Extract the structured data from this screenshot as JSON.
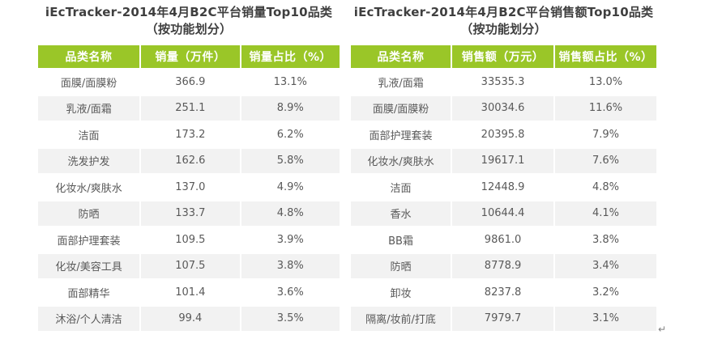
{
  "colors": {
    "accent_green": "#9ac628",
    "header_text": "#ffffff",
    "row_alt_bg": "#f2f2f2",
    "cell_text": "#595959",
    "title_text": "#3f3f3f"
  },
  "word_return_mark": "↵",
  "chart_data": [
    {
      "type": "table",
      "title_line1": "iEcTracker-2014年4月B2C平台销量Top10品类",
      "title_line2": "（按功能划分）",
      "headers": [
        "品类名称",
        "销量（万件）",
        "销量占比（%）"
      ],
      "rows": [
        [
          "面膜/面膜粉",
          "366.9",
          "13.1%"
        ],
        [
          "乳液/面霜",
          "251.1",
          "8.9%"
        ],
        [
          "洁面",
          "173.2",
          "6.2%"
        ],
        [
          "洗发护发",
          "162.6",
          "5.8%"
        ],
        [
          "化妆水/爽肤水",
          "137.0",
          "4.9%"
        ],
        [
          "防晒",
          "133.7",
          "4.8%"
        ],
        [
          "面部护理套装",
          "109.5",
          "3.9%"
        ],
        [
          "化妆/美容工具",
          "107.5",
          "3.8%"
        ],
        [
          "面部精华",
          "101.4",
          "3.6%"
        ],
        [
          "沐浴/个人清洁",
          "99.4",
          "3.5%"
        ]
      ]
    },
    {
      "type": "table",
      "title_line1": "iEcTracker-2014年4月B2C平台销售额Top10品类",
      "title_line2": "（按功能划分）",
      "headers": [
        "品类名称",
        "销售额（万元）",
        "销售额占比（%）"
      ],
      "rows": [
        [
          "乳液/面霜",
          "33535.3",
          "13.0%"
        ],
        [
          "面膜/面膜粉",
          "30034.6",
          "11.6%"
        ],
        [
          "面部护理套装",
          "20395.8",
          "7.9%"
        ],
        [
          "化妆水/爽肤水",
          "19617.1",
          "7.6%"
        ],
        [
          "洁面",
          "12448.9",
          "4.8%"
        ],
        [
          "香水",
          "10644.4",
          "4.1%"
        ],
        [
          "BB霜",
          "9861.0",
          "3.8%"
        ],
        [
          "防晒",
          "8778.9",
          "3.4%"
        ],
        [
          "卸妆",
          "8237.8",
          "3.2%"
        ],
        [
          "隔离/妆前/打底",
          "7979.7",
          "3.1%"
        ]
      ]
    }
  ]
}
